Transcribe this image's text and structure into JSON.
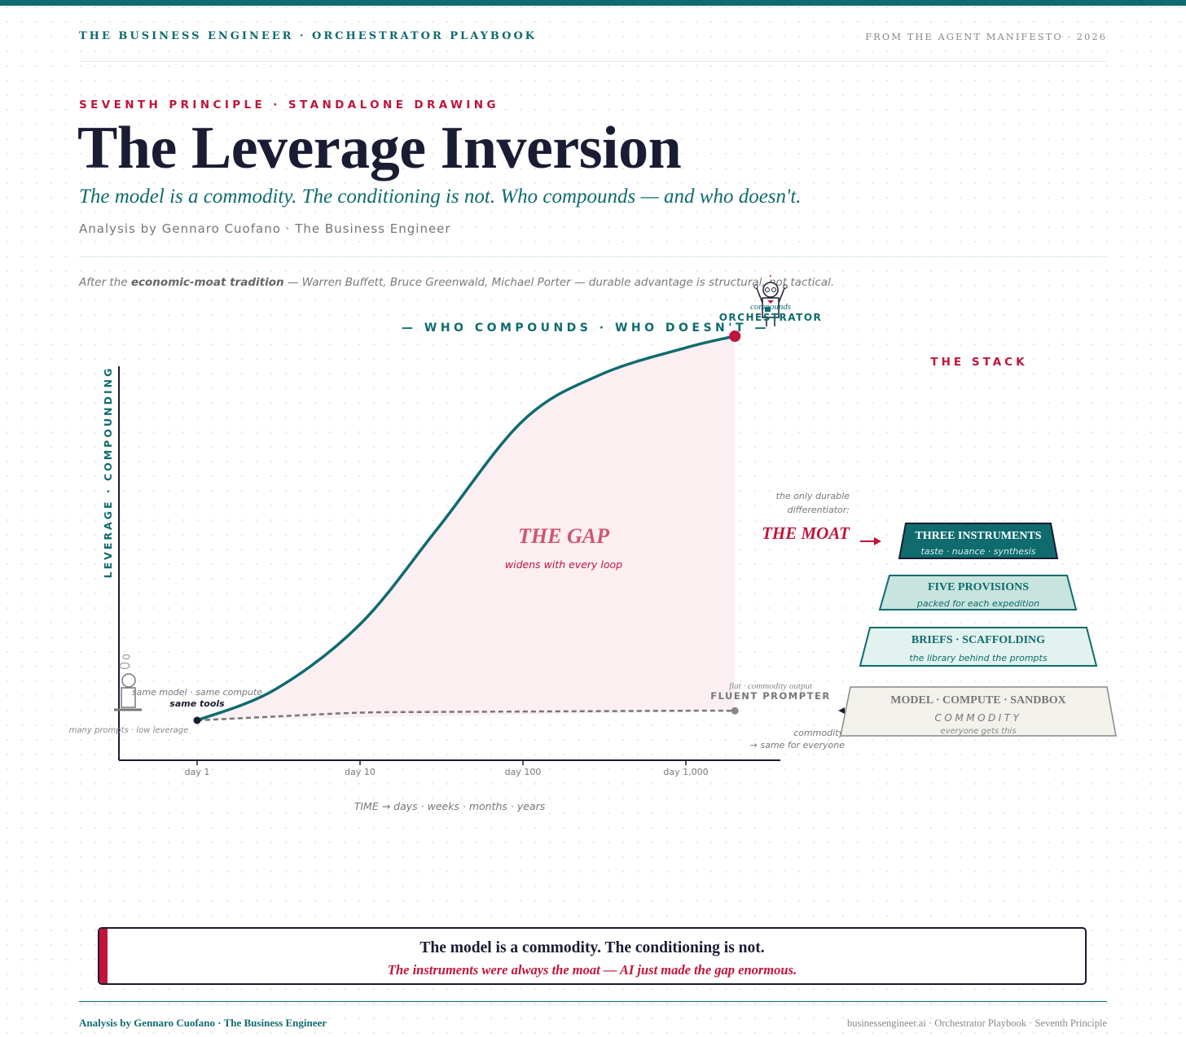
{
  "header": {
    "left": "THE BUSINESS ENGINEER · ORCHESTRATOR PLAYBOOK",
    "right": "FROM THE AGENT MANIFESTO · 2026"
  },
  "kicker": "SEVENTH PRINCIPLE · STANDALONE DRAWING",
  "title": "The Leverage Inversion",
  "subtitle": "The model is a commodity. The conditioning is not. Who compounds — and who doesn't.",
  "byline": "Analysis by Gennaro Cuofano · The Business Engineer",
  "after_note": {
    "prefix": "After the ",
    "bold": "economic-moat tradition",
    "suffix": " — Warren Buffett, Bruce Greenwald, Michael Porter — durable advantage is structural, not tactical."
  },
  "chart_data": {
    "type": "line",
    "title": "— WHO COMPOUNDS · WHO DOESN'T —",
    "ylabel": "LEVERAGE · COMPOUNDING",
    "xlabel": "TIME → days · weeks · months · years",
    "x_scale": "log",
    "x_ticks": [
      1,
      10,
      100,
      1000
    ],
    "x_tick_labels": [
      "day 1",
      "day 10",
      "day 100",
      "day 1,000"
    ],
    "ylim": [
      0,
      100
    ],
    "series": [
      {
        "name": "ORCHESTRATOR",
        "caption": "compounds",
        "color": "#0f6b6e",
        "x": [
          1,
          3,
          10,
          30,
          100,
          300,
          1000,
          2000
        ],
        "y": [
          0,
          8,
          25,
          50,
          78,
          90,
          97,
          100
        ]
      },
      {
        "name": "FLUENT PROMPTER",
        "caption": "flat · commodity output",
        "color": "#777777",
        "x": [
          1,
          3,
          10,
          30,
          100,
          300,
          1000,
          2000
        ],
        "y": [
          0,
          1,
          2,
          2.2,
          2.3,
          2.4,
          2.5,
          2.5
        ]
      }
    ],
    "annotations": {
      "gap_title": "THE GAP",
      "gap_sub": "widens with every loop",
      "start_top": "same model · same compute",
      "start_bold": "same tools",
      "start_bottom": "many prompts · low leverage",
      "moat_pre1": "the only durable",
      "moat_pre2": "differentiator:",
      "moat": "THE MOAT",
      "commodity1": "commodity",
      "commodity2": "→ same for everyone"
    },
    "stack": {
      "title": "THE STACK",
      "layers": [
        {
          "title": "THREE INSTRUMENTS",
          "sub": "taste · nuance · synthesis"
        },
        {
          "title": "FIVE PROVISIONS",
          "sub": "packed for each expedition"
        },
        {
          "title": "BRIEFS · SCAFFOLDING",
          "sub": "the library behind the prompts"
        },
        {
          "title": "MODEL · COMPUTE · SANDBOX",
          "mid": "COMMODITY",
          "sub": "everyone gets this"
        }
      ]
    }
  },
  "banner": {
    "main": "The model is a commodity. The conditioning is not.",
    "sub": "The instruments were always the moat — AI just made the gap enormous."
  },
  "footer": {
    "left": "Analysis by Gennaro Cuofano · The Business Engineer",
    "right": "businessengineer.ai · Orchestrator Playbook · Seventh Principle"
  }
}
